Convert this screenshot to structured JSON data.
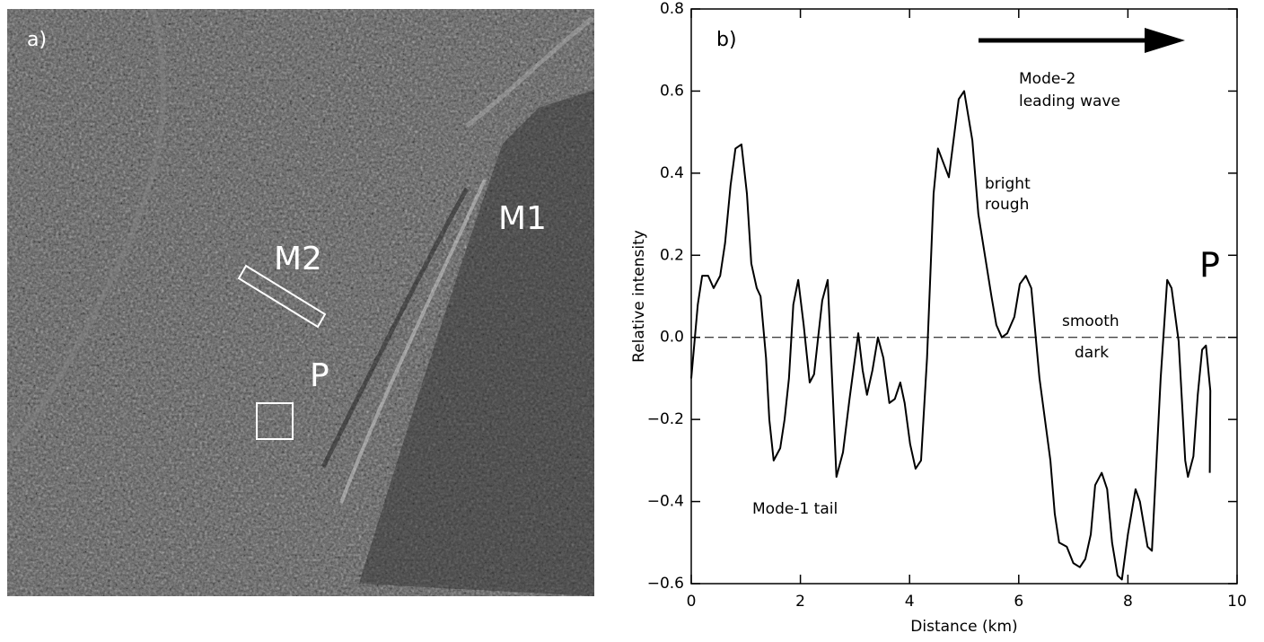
{
  "image_panel": {
    "panel_label": "a)",
    "labels": [
      "M1",
      "M2",
      "P"
    ]
  },
  "chart_data": {
    "type": "line",
    "panel_label": "b)",
    "x_label": "Distance (km)",
    "y_label": "Relative intensity",
    "xlim": [
      0,
      10
    ],
    "ylim": [
      -0.6,
      0.8
    ],
    "xticks": [
      0,
      2,
      4,
      6,
      8,
      10
    ],
    "yticks": [
      {
        "value": -0.6,
        "label": "−0.6"
      },
      {
        "value": -0.4,
        "label": "−0.4"
      },
      {
        "value": -0.2,
        "label": "−0.2"
      },
      {
        "value": 0,
        "label": "0.0"
      },
      0.2,
      0.4,
      0.6,
      0.8
    ],
    "reference_line": 0,
    "annotations": [
      "Mode-2",
      "leading wave",
      "bright",
      "rough",
      "P",
      "smooth",
      "dark",
      "Mode-1 tail"
    ],
    "series": [
      {
        "color": "#000000",
        "x": [
          0,
          0.12,
          0.2,
          0.31,
          0.41,
          0.53,
          0.62,
          0.72,
          0.81,
          0.92,
          1.02,
          1.1,
          1.2,
          1.27,
          1.37,
          1.43,
          1.51,
          1.63,
          1.71,
          1.79,
          1.87,
          1.96,
          2.06,
          2.17,
          2.25,
          2.4,
          2.5,
          2.58,
          2.66,
          2.78,
          2.9,
          3.06,
          3.14,
          3.22,
          3.32,
          3.42,
          3.52,
          3.63,
          3.73,
          3.83,
          3.91,
          4.01,
          4.11,
          4.21,
          4.32,
          4.44,
          4.52,
          4.72,
          4.9,
          5.0,
          5.15,
          5.26,
          5.5,
          5.59,
          5.69,
          5.79,
          5.92,
          6.02,
          6.13,
          6.23,
          6.38,
          6.58,
          6.66,
          6.74,
          6.88,
          7.0,
          7.12,
          7.22,
          7.32,
          7.4,
          7.52,
          7.62,
          7.71,
          7.81,
          7.89,
          8.0,
          8.14,
          8.22,
          8.36,
          8.44,
          8.6,
          8.72,
          8.8,
          8.93,
          9.05,
          9.1,
          9.2,
          9.28,
          9.36,
          9.43,
          9.51,
          9.5
        ],
        "values": [
          -0.1,
          0.08,
          0.15,
          0.15,
          0.12,
          0.15,
          0.23,
          0.37,
          0.46,
          0.47,
          0.35,
          0.18,
          0.12,
          0.1,
          -0.05,
          -0.2,
          -0.3,
          -0.27,
          -0.2,
          -0.1,
          0.08,
          0.14,
          0.03,
          -0.11,
          -0.09,
          0.09,
          0.14,
          -0.1,
          -0.34,
          -0.28,
          -0.15,
          0.01,
          -0.08,
          -0.14,
          -0.08,
          0.0,
          -0.05,
          -0.16,
          -0.15,
          -0.11,
          -0.16,
          -0.26,
          -0.32,
          -0.3,
          -0.05,
          0.35,
          0.46,
          0.39,
          0.58,
          0.6,
          0.48,
          0.3,
          0.1,
          0.03,
          0.0,
          0.01,
          0.05,
          0.13,
          0.15,
          0.12,
          -0.1,
          -0.3,
          -0.43,
          -0.5,
          -0.51,
          -0.55,
          -0.56,
          -0.54,
          -0.48,
          -0.36,
          -0.33,
          -0.37,
          -0.5,
          -0.58,
          -0.59,
          -0.48,
          -0.37,
          -0.4,
          -0.51,
          -0.52,
          -0.1,
          0.14,
          0.12,
          -0.01,
          -0.3,
          -0.34,
          -0.29,
          -0.14,
          -0.03,
          -0.02,
          -0.13,
          -0.33
        ]
      }
    ]
  }
}
